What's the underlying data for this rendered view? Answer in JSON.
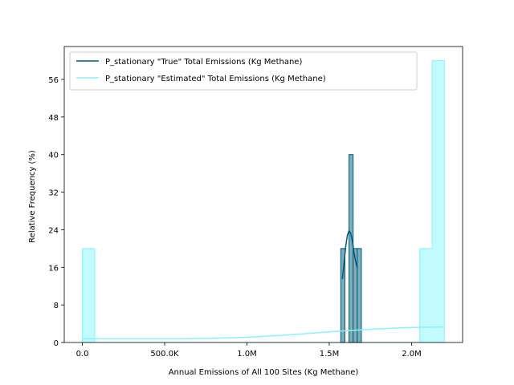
{
  "chart_data": {
    "type": "histogram",
    "xlabel": "Annual Emissions of All 100 Sites (Kg Methane)",
    "ylabel": "Relative Frequency (%)",
    "xlim": [
      -110000,
      2310000
    ],
    "ylim": [
      0,
      63
    ],
    "x_ticks": [
      {
        "value": 0,
        "label": "0.0"
      },
      {
        "value": 500000,
        "label": "500.0K"
      },
      {
        "value": 1000000,
        "label": "1.0M"
      },
      {
        "value": 1500000,
        "label": "1.5M"
      },
      {
        "value": 2000000,
        "label": "2.0M"
      }
    ],
    "y_ticks": [
      0,
      8,
      16,
      24,
      32,
      40,
      48,
      56
    ],
    "legend_position": "upper-left",
    "series": [
      {
        "name": "P_stationary \"True\" Total Emissions (Kg Methane)",
        "color": "#005a78",
        "fill": "#7fadbc",
        "style": "bars",
        "bins": [
          {
            "x0": 1570000,
            "x1": 1595000,
            "value": 20
          },
          {
            "x0": 1595000,
            "x1": 1620000,
            "value": 0
          },
          {
            "x0": 1620000,
            "x1": 1645000,
            "value": 40
          },
          {
            "x0": 1645000,
            "x1": 1670000,
            "value": 20
          },
          {
            "x0": 1670000,
            "x1": 1695000,
            "value": 20
          }
        ],
        "kde": {
          "x": [
            1580000,
            1590000,
            1600000,
            1610000,
            1620000,
            1630000,
            1640000,
            1650000,
            1660000,
            1670000
          ],
          "y": [
            13.5,
            17,
            20.5,
            22.8,
            23.8,
            23.3,
            21.6,
            19.2,
            17.3,
            15.8
          ]
        }
      },
      {
        "name": "P_stationary \"Estimated\" Total Emissions (Kg Methane)",
        "color": "#8bf1fa",
        "fill": "#c2fbfe",
        "style": "step",
        "bins": [
          {
            "x0": 0,
            "x1": 75000,
            "value": 20
          },
          {
            "x0": 75000,
            "x1": 2050000,
            "value": 0
          },
          {
            "x0": 2050000,
            "x1": 2125000,
            "value": 20
          },
          {
            "x0": 2125000,
            "x1": 2200000,
            "value": 60
          }
        ],
        "kde": {
          "x": [
            0,
            200000,
            400000,
            600000,
            800000,
            1000000,
            1200000,
            1400000,
            1600000,
            1800000,
            2000000,
            2200000
          ],
          "y": [
            0.8,
            0.8,
            0.8,
            0.8,
            0.9,
            1.1,
            1.5,
            2.0,
            2.5,
            2.9,
            3.2,
            3.3
          ]
        }
      }
    ]
  }
}
